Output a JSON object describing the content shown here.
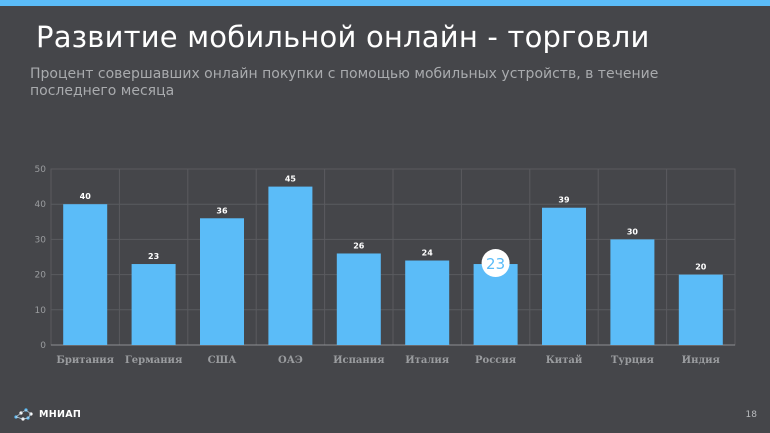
{
  "slide": {
    "title": "Развитие  мобильной онлайн - торговли",
    "subtitle": "Процент совершавших онлайн покупки  с помощью мобильных устройств, в течение последнего месяца",
    "page_number": "18",
    "logo_text": "МНИАП"
  },
  "colors": {
    "background": "#45464a",
    "accent": "#5bbcf8",
    "bar": "#5bbcf8",
    "grid": "#5a5b5f",
    "axis_text": "#9a9c9f",
    "label_text": "#ffffff"
  },
  "chart_data": {
    "type": "bar",
    "title": "",
    "xlabel": "",
    "ylabel": "",
    "ylim": [
      0,
      50
    ],
    "yticks": [
      0,
      10,
      20,
      30,
      40,
      50
    ],
    "grid": true,
    "categories": [
      "Британия",
      "Германия",
      "США",
      "ОАЭ",
      "Испания",
      "Италия",
      "Россия",
      "Китай",
      "Турция",
      "Индия"
    ],
    "values": [
      40,
      23,
      36,
      45,
      26,
      24,
      23,
      39,
      30,
      20
    ],
    "highlight": {
      "category": "Россия",
      "label": "23"
    }
  }
}
